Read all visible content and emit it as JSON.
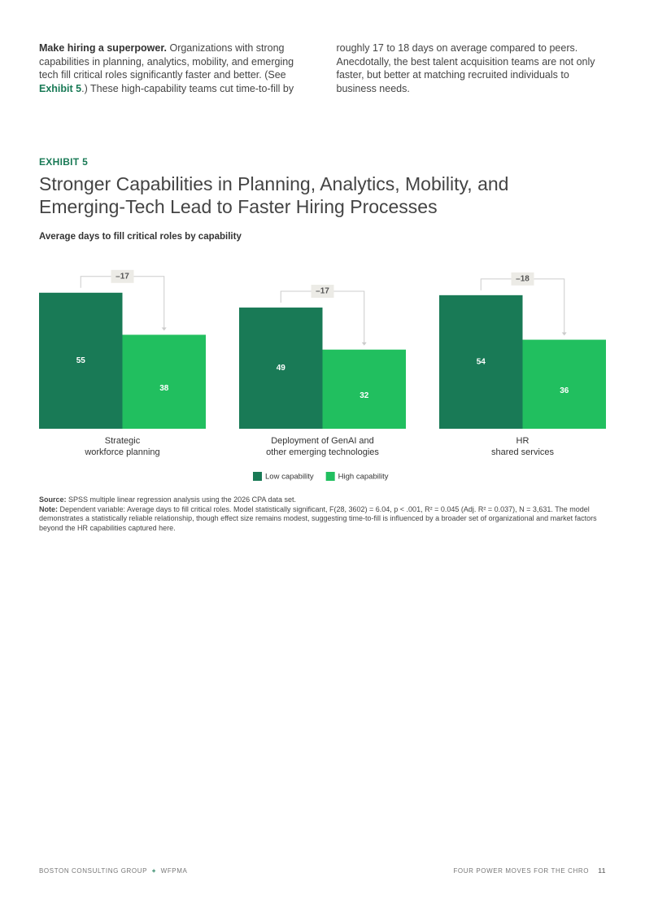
{
  "intro": {
    "lead": "Make hiring a superpower.",
    "text1": " Organizations with strong capabilities in planning, analytics, mobility, and emerging tech fill critical roles significantly faster and better. (See ",
    "exhibit_ref": "Exhibit 5",
    "text2": ".) These high-capability teams cut time-to-fill by roughly 17 to 18 days on average compared to peers. Anecdotally, the best talent acquisition teams are not only faster, but better at matching recruited individuals to business needs."
  },
  "exhibit_label": "EXHIBIT 5",
  "chart_data": {
    "type": "bar",
    "title": "Stronger Capabilities in Planning, Analytics, Mobility, and Emerging-Tech Lead to Faster Hiring Processes",
    "subtitle": "Average days to fill critical roles by capability",
    "categories": [
      "Strategic\nworkforce planning",
      "Deployment of GenAI and\nother emerging technologies",
      "HR\nshared services"
    ],
    "series": [
      {
        "name": "Low capability",
        "color": "#197a56",
        "values": [
          55,
          49,
          54
        ]
      },
      {
        "name": "High capability",
        "color": "#21bf5f",
        "values": [
          38,
          32,
          36
        ]
      }
    ],
    "annotations": [
      "–17",
      "–17",
      "–18"
    ],
    "legend": "bottom"
  },
  "source": {
    "label": "Source:",
    "text": " SPSS multiple linear regression analysis using the 2026 CPA data set."
  },
  "note": {
    "label": "Note:",
    "text": " Dependent variable: Average days to fill critical roles. Model statistically significant, F(28, 3602) = 6.04, p < .001, R² = 0.045 (Adj. R² = 0.037), N = 3,631. The model demonstrates a statistically reliable relationship, though effect size remains modest, suggesting time-to-fill is influenced by a broader set of organizational and market factors beyond the HR capabilities captured here."
  },
  "footer": {
    "left": "BOSTON CONSULTING GROUP",
    "separator": "+",
    "partner": "WFPMA",
    "right": "FOUR POWER MOVES FOR THE CHRO",
    "page": "11"
  }
}
